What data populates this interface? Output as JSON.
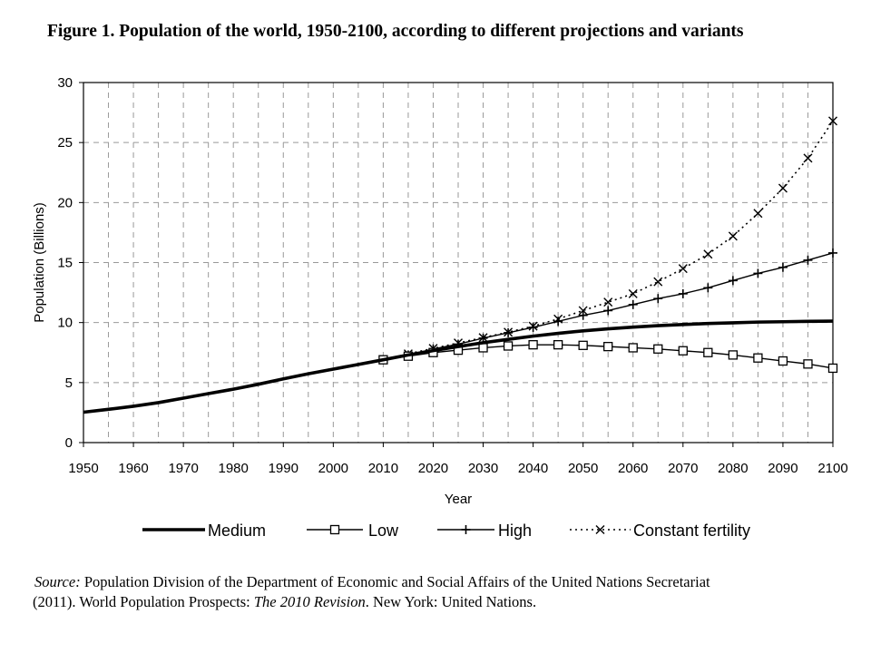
{
  "figure": {
    "title": "Figure 1.  Population of the world, 1950-2100, according to different projections and variants"
  },
  "source": {
    "label": "Source:",
    "text_1": " Population Division of the Department of Economic and Social Affairs of the United Nations Secretariat",
    "text_2a": "(2011). World Population Prospects: ",
    "text_2b": "The 2010 Revision",
    "text_2c": ". New York: United Nations."
  },
  "chart_data": {
    "type": "line",
    "title": "",
    "xlabel": "Year",
    "ylabel": "Population (Billions)",
    "xlim": [
      1950,
      2100
    ],
    "ylim": [
      0,
      30
    ],
    "x_ticks": [
      1950,
      1960,
      1970,
      1980,
      1990,
      2000,
      2010,
      2020,
      2030,
      2040,
      2050,
      2060,
      2070,
      2080,
      2090,
      2100
    ],
    "y_ticks": [
      0,
      5,
      10,
      15,
      20,
      25,
      30
    ],
    "grid": true,
    "legend_position": "bottom",
    "series": [
      {
        "name": "Medium",
        "style": "thick-solid",
        "x": [
          1950,
          1955,
          1960,
          1965,
          1970,
          1975,
          1980,
          1985,
          1990,
          1995,
          2000,
          2005,
          2010,
          2015,
          2020,
          2025,
          2030,
          2035,
          2040,
          2045,
          2050,
          2055,
          2060,
          2065,
          2070,
          2075,
          2080,
          2085,
          2090,
          2095,
          2100
        ],
        "values": [
          2.53,
          2.77,
          3.03,
          3.33,
          3.7,
          4.08,
          4.45,
          4.86,
          5.31,
          5.73,
          6.12,
          6.51,
          6.9,
          7.3,
          7.66,
          8.0,
          8.32,
          8.6,
          8.87,
          9.1,
          9.31,
          9.48,
          9.62,
          9.74,
          9.84,
          9.92,
          9.98,
          10.04,
          10.07,
          10.1,
          10.12
        ]
      },
      {
        "name": "Low",
        "style": "solid-open-square",
        "x": [
          2010,
          2015,
          2020,
          2025,
          2030,
          2035,
          2040,
          2045,
          2050,
          2055,
          2060,
          2065,
          2070,
          2075,
          2080,
          2085,
          2090,
          2095,
          2100
        ],
        "values": [
          6.9,
          7.2,
          7.5,
          7.7,
          7.9,
          8.05,
          8.15,
          8.15,
          8.1,
          8.0,
          7.9,
          7.8,
          7.65,
          7.5,
          7.3,
          7.05,
          6.8,
          6.55,
          6.2
        ]
      },
      {
        "name": "High",
        "style": "solid-plus",
        "x": [
          2010,
          2015,
          2020,
          2025,
          2030,
          2035,
          2040,
          2045,
          2050,
          2055,
          2060,
          2065,
          2070,
          2075,
          2080,
          2085,
          2090,
          2095,
          2100
        ],
        "values": [
          6.9,
          7.3,
          7.8,
          8.2,
          8.7,
          9.15,
          9.6,
          10.1,
          10.6,
          11.0,
          11.5,
          12.0,
          12.4,
          12.9,
          13.5,
          14.1,
          14.6,
          15.2,
          15.8
        ]
      },
      {
        "name": "Constant fertility",
        "style": "dotted-x",
        "x": [
          2010,
          2015,
          2020,
          2025,
          2030,
          2035,
          2040,
          2045,
          2050,
          2055,
          2060,
          2065,
          2070,
          2075,
          2080,
          2085,
          2090,
          2095,
          2100
        ],
        "values": [
          6.9,
          7.4,
          7.85,
          8.3,
          8.75,
          9.2,
          9.7,
          10.3,
          11.0,
          11.7,
          12.4,
          13.4,
          14.5,
          15.7,
          17.2,
          19.1,
          21.2,
          23.7,
          26.8
        ]
      }
    ]
  }
}
